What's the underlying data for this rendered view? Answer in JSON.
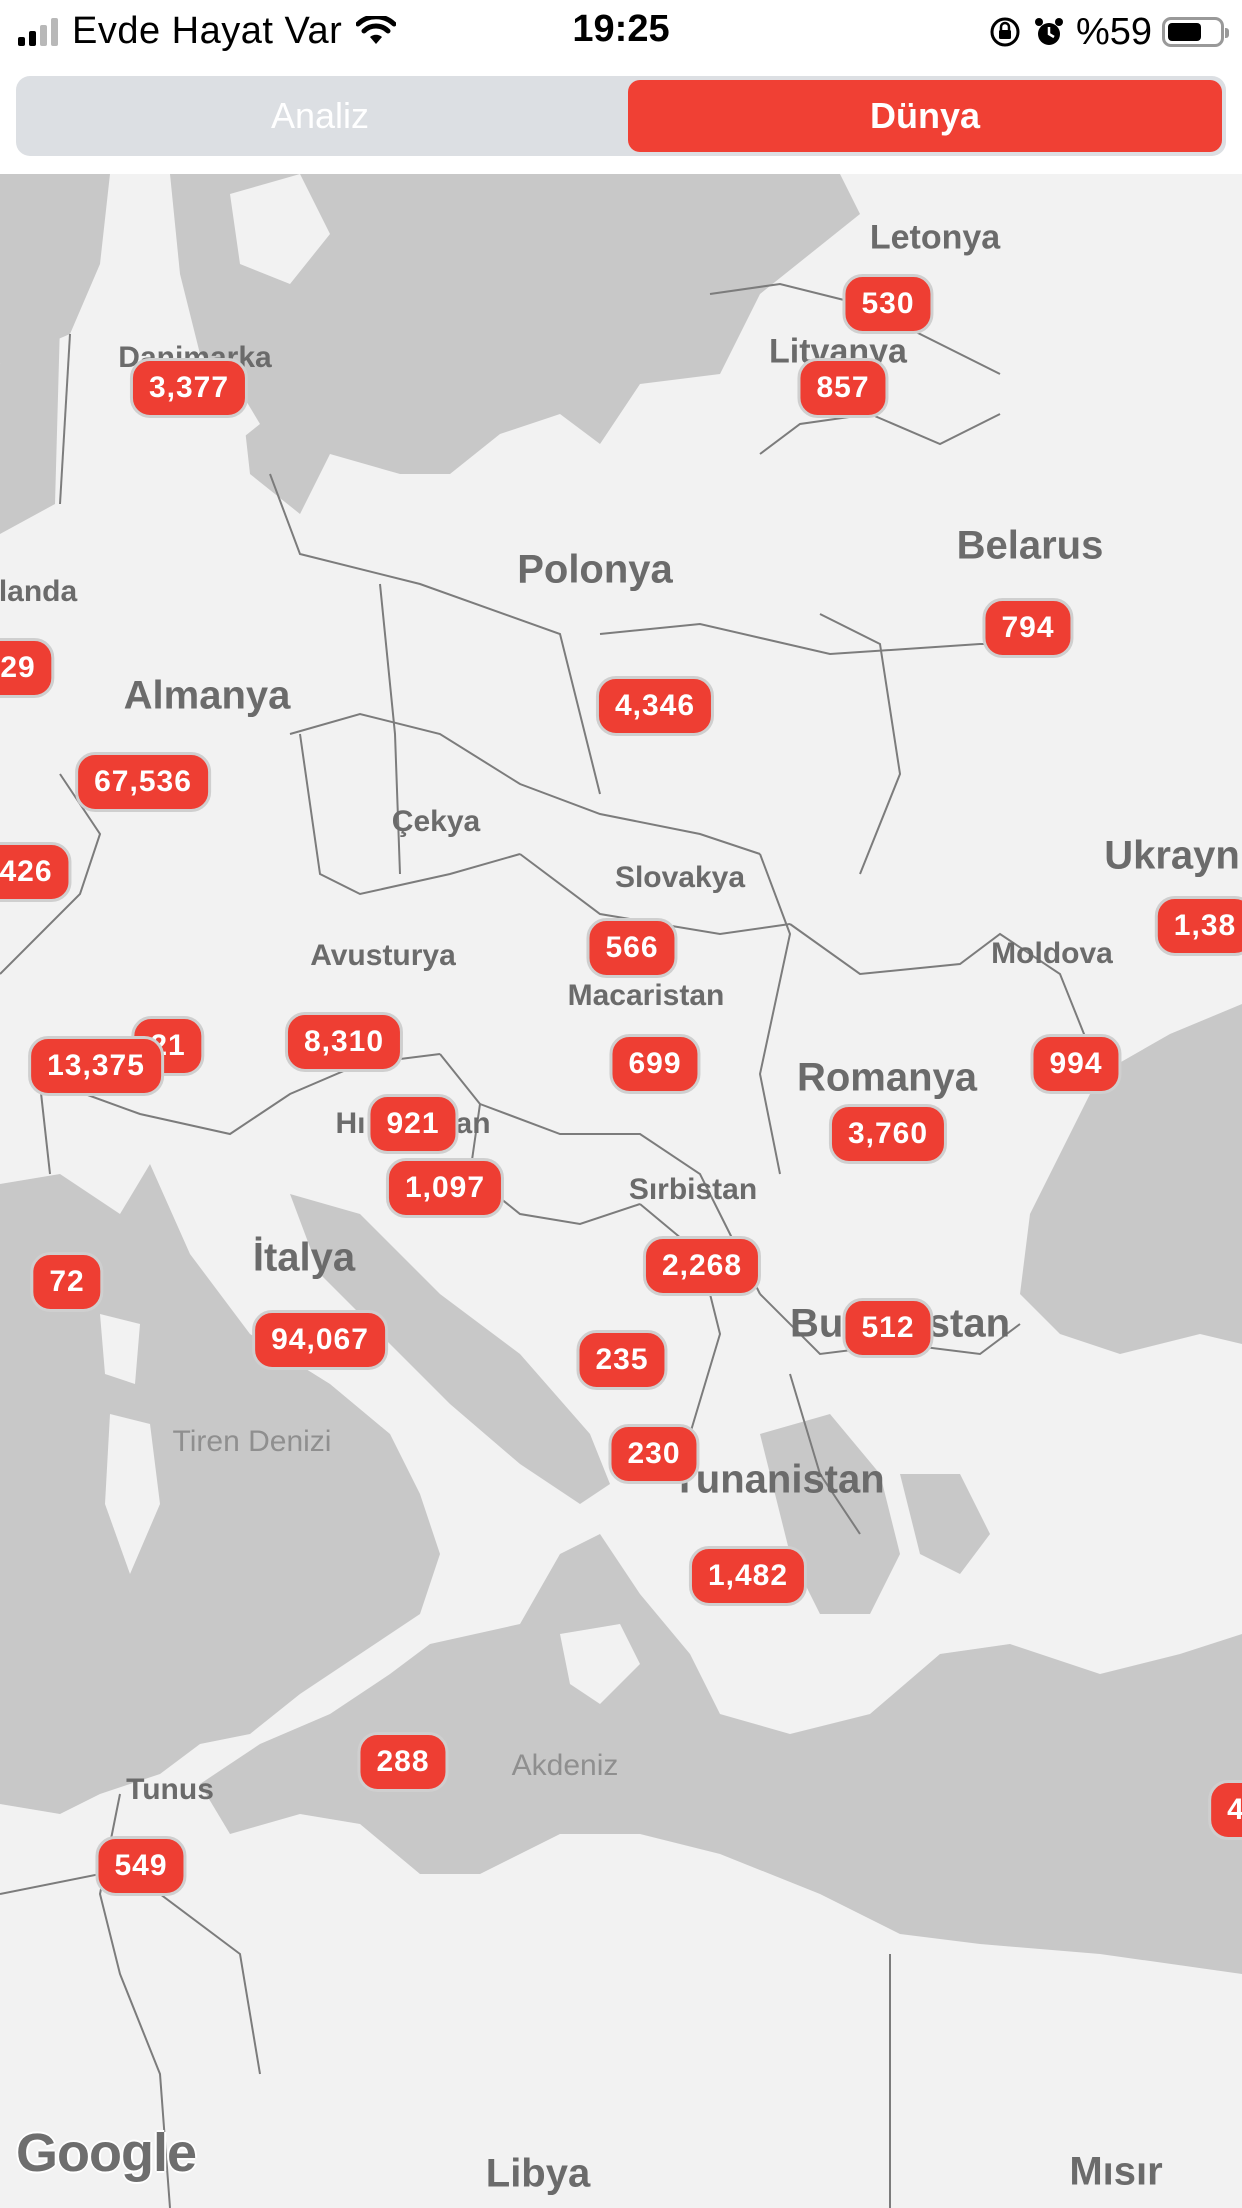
{
  "status_bar": {
    "carrier": "Evde Hayat Var",
    "time": "19:25",
    "battery_percent": "%59",
    "battery_level": 0.59
  },
  "tabs": [
    {
      "label": "Analiz",
      "selected": false
    },
    {
      "label": "Dünya",
      "selected": true
    }
  ],
  "colors": {
    "accent": "#f04034",
    "badge": "#ee3e33",
    "map_land": "#f2f2f2",
    "map_water": "#c8c8c8"
  },
  "map": {
    "countries": {
      "letonya": "Letonya",
      "litvanya": "Litvanya",
      "danimarka": "Danimarka",
      "hollanda": "landa",
      "polonya": "Polonya",
      "belarus": "Belarus",
      "almanya": "Almanya",
      "cekya": "Çekya",
      "slovakya": "Slovakya",
      "ukrayna": "Ukrayn",
      "avusturya": "Avusturya",
      "moldova": "Moldova",
      "macaristan": "Macaristan",
      "romanya": "Romanya",
      "hirvatistan": "Hırvatistan",
      "sirbistan": "Sırbistan",
      "italya": "İtalya",
      "bulgaristan": "Bulgaristan",
      "yunanistan": "Yunanistan",
      "tunus": "Tunus",
      "libya": "Libya",
      "misir": "Mısır"
    },
    "seas": {
      "tiren": "Tiren Denizi",
      "akdeniz": "Akdeniz"
    },
    "cases": {
      "letonya": "530",
      "litvanya": "857",
      "danimarka": "3,377",
      "hollanda": "29",
      "polonya": "4,346",
      "belarus": "794",
      "almanya": "67,536",
      "belcika": "426",
      "ukrayna": "1,38",
      "slovakya": "566",
      "luksemburg": "21",
      "isvicre": "13,375",
      "avusturya": "8,310",
      "macaristan": "699",
      "moldova": "994",
      "slovenya": "921",
      "romanya": "3,760",
      "hirvatistan": "1,097",
      "monako": "72",
      "sirbistan": "2,268",
      "italya": "94,067",
      "bulgaristan": "512",
      "karadag": "235",
      "arnavutluk": "230",
      "yunanistan": "1,482",
      "malta": "288",
      "tunus": "549",
      "misir": "4"
    },
    "attribution": "Google"
  }
}
